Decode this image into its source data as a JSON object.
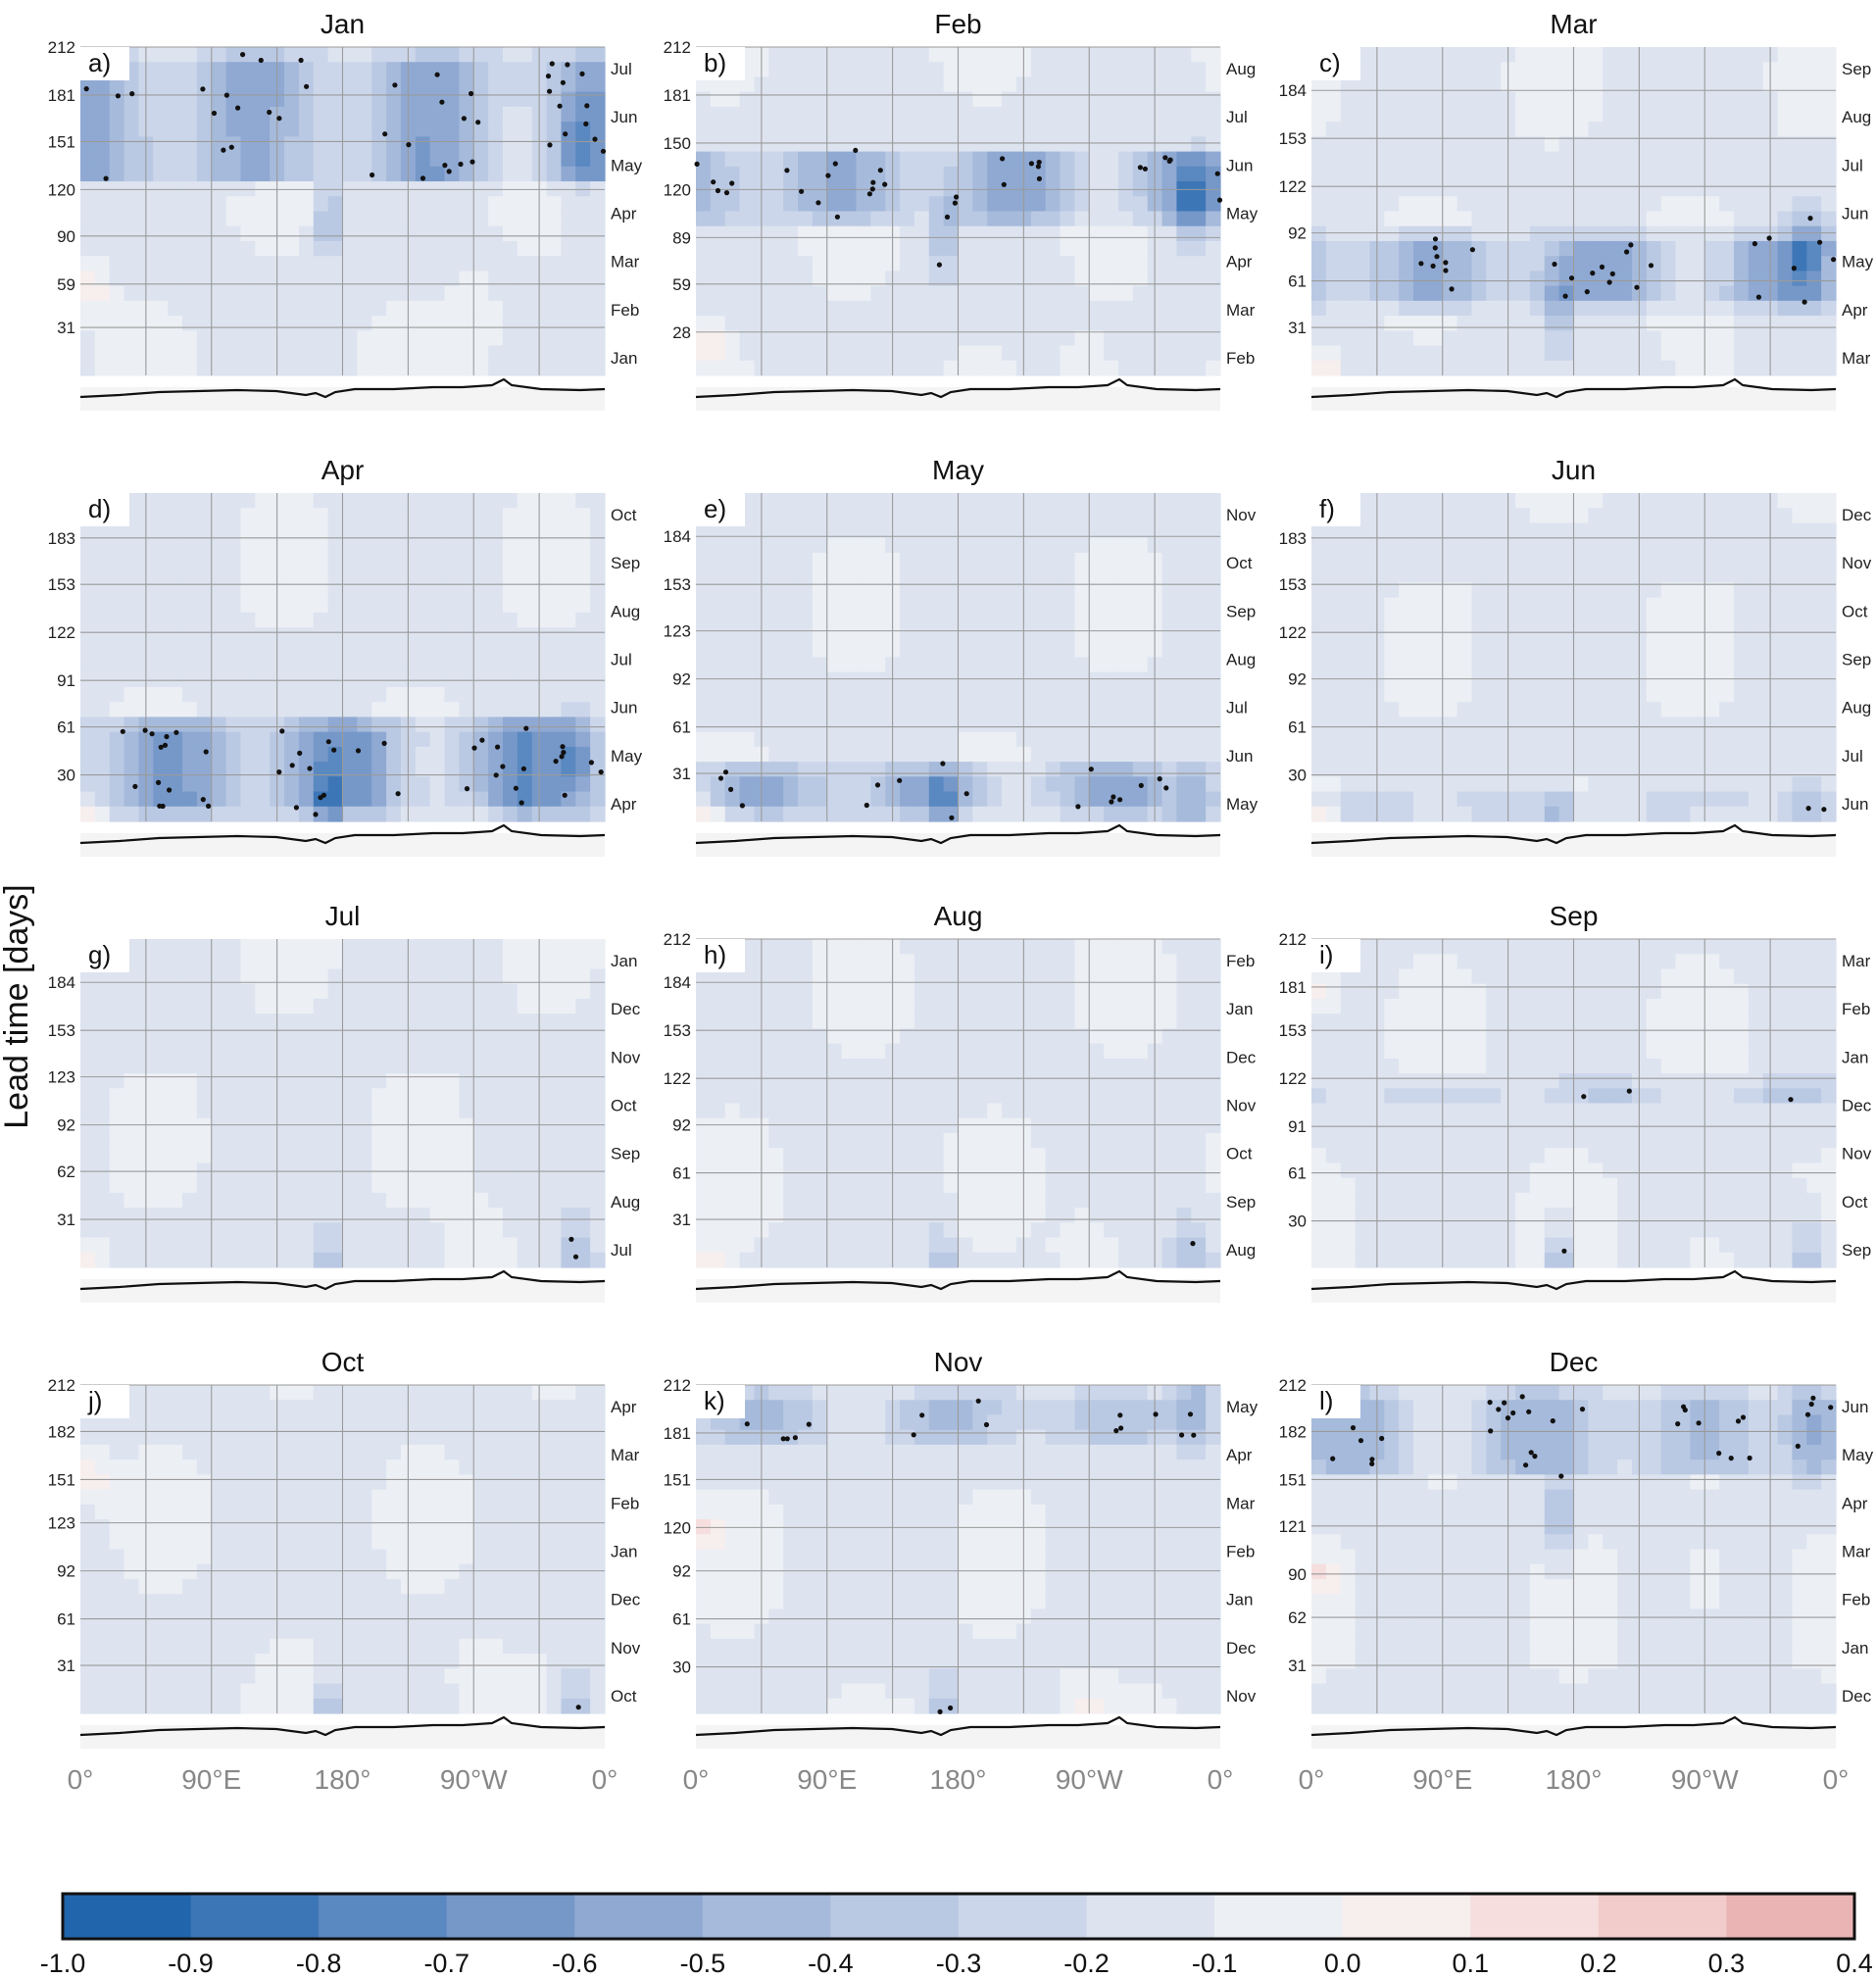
{
  "figure": {
    "ylabel": "Lead time [days]",
    "x_tick_labels": [
      "0°",
      "90°E",
      "180°",
      "90°W",
      "0°"
    ],
    "colorbar": {
      "ticks": [
        "-1.0",
        "-0.9",
        "-0.8",
        "-0.7",
        "-0.6",
        "-0.5",
        "-0.4",
        "-0.3",
        "-0.2",
        "-0.1",
        "0.0",
        "0.1",
        "0.2",
        "0.3",
        "0.4"
      ],
      "colors": [
        "#2166ac",
        "#3d76b6",
        "#5a88c0",
        "#7698c9",
        "#8fa9d3",
        "#a6badb",
        "#bac9e3",
        "#ccd6ea",
        "#dde4f0",
        "#eceff4",
        "#f7eeee",
        "#f6dede",
        "#f2cbcb",
        "#eab4b4"
      ]
    },
    "colors": {
      "gridline": "#9a9a9a",
      "contour": "#111111",
      "stipple": "#111111",
      "land": "#f4f4f4",
      "coastline": "#111111"
    }
  },
  "chart_data": [
    {
      "type": "heatmap",
      "panel": "a)",
      "title": "Jan",
      "y_ticks": [
        "212",
        "181",
        "151",
        "120",
        "90",
        "59",
        "31"
      ],
      "month_labels": [
        "Jul",
        "Jun",
        "May",
        "Apr",
        "Mar",
        "Feb",
        "Jan"
      ],
      "y_range": [
        0,
        212
      ]
    },
    {
      "type": "heatmap",
      "panel": "b)",
      "title": "Feb",
      "y_ticks": [
        "212",
        "181",
        "150",
        "120",
        "89",
        "59",
        "28"
      ],
      "month_labels": [
        "Aug",
        "Jul",
        "Jun",
        "May",
        "Apr",
        "Mar",
        "Feb"
      ],
      "y_range": [
        0,
        212
      ]
    },
    {
      "type": "heatmap",
      "panel": "c)",
      "title": "Mar",
      "y_ticks": [
        "184",
        "153",
        "122",
        "92",
        "61",
        "31"
      ],
      "month_labels": [
        "Sep",
        "Aug",
        "Jul",
        "Jun",
        "May",
        "Apr",
        "Mar"
      ],
      "y_range": [
        0,
        212
      ]
    },
    {
      "type": "heatmap",
      "panel": "d)",
      "title": "Apr",
      "y_ticks": [
        "183",
        "153",
        "122",
        "91",
        "61",
        "30"
      ],
      "month_labels": [
        "Oct",
        "Sep",
        "Aug",
        "Jul",
        "Jun",
        "May",
        "Apr"
      ],
      "y_range": [
        0,
        212
      ]
    },
    {
      "type": "heatmap",
      "panel": "e)",
      "title": "May",
      "y_ticks": [
        "184",
        "153",
        "123",
        "92",
        "61",
        "31"
      ],
      "month_labels": [
        "Nov",
        "Oct",
        "Sep",
        "Aug",
        "Jul",
        "Jun",
        "May"
      ],
      "y_range": [
        0,
        212
      ]
    },
    {
      "type": "heatmap",
      "panel": "f)",
      "title": "Jun",
      "y_ticks": [
        "183",
        "153",
        "122",
        "92",
        "61",
        "30"
      ],
      "month_labels": [
        "Dec",
        "Nov",
        "Oct",
        "Sep",
        "Aug",
        "Jul",
        "Jun"
      ],
      "y_range": [
        0,
        212
      ]
    },
    {
      "type": "heatmap",
      "panel": "g)",
      "title": "Jul",
      "y_ticks": [
        "184",
        "153",
        "123",
        "92",
        "62",
        "31"
      ],
      "month_labels": [
        "Jan",
        "Dec",
        "Nov",
        "Oct",
        "Sep",
        "Aug",
        "Jul"
      ],
      "y_range": [
        0,
        212
      ]
    },
    {
      "type": "heatmap",
      "panel": "h)",
      "title": "Aug",
      "y_ticks": [
        "212",
        "184",
        "153",
        "122",
        "92",
        "61",
        "31"
      ],
      "month_labels": [
        "Feb",
        "Jan",
        "Dec",
        "Nov",
        "Oct",
        "Sep",
        "Aug"
      ],
      "y_range": [
        0,
        212
      ]
    },
    {
      "type": "heatmap",
      "panel": "i)",
      "title": "Sep",
      "y_ticks": [
        "212",
        "181",
        "153",
        "122",
        "91",
        "61",
        "30"
      ],
      "month_labels": [
        "Mar",
        "Feb",
        "Jan",
        "Dec",
        "Nov",
        "Oct",
        "Sep"
      ],
      "y_range": [
        0,
        212
      ]
    },
    {
      "type": "heatmap",
      "panel": "j)",
      "title": "Oct",
      "y_ticks": [
        "212",
        "182",
        "151",
        "123",
        "92",
        "61",
        "31"
      ],
      "month_labels": [
        "Apr",
        "Mar",
        "Feb",
        "Jan",
        "Dec",
        "Nov",
        "Oct"
      ],
      "y_range": [
        0,
        212
      ]
    },
    {
      "type": "heatmap",
      "panel": "k)",
      "title": "Nov",
      "y_ticks": [
        "212",
        "181",
        "151",
        "120",
        "92",
        "61",
        "30"
      ],
      "month_labels": [
        "May",
        "Apr",
        "Mar",
        "Feb",
        "Jan",
        "Dec",
        "Nov"
      ],
      "y_range": [
        0,
        212
      ]
    },
    {
      "type": "heatmap",
      "panel": "l)",
      "title": "Dec",
      "y_ticks": [
        "212",
        "182",
        "151",
        "121",
        "90",
        "62",
        "31"
      ],
      "month_labels": [
        "Jun",
        "May",
        "Apr",
        "Mar",
        "Feb",
        "Jan",
        "Dec"
      ],
      "y_range": [
        0,
        212
      ]
    }
  ]
}
